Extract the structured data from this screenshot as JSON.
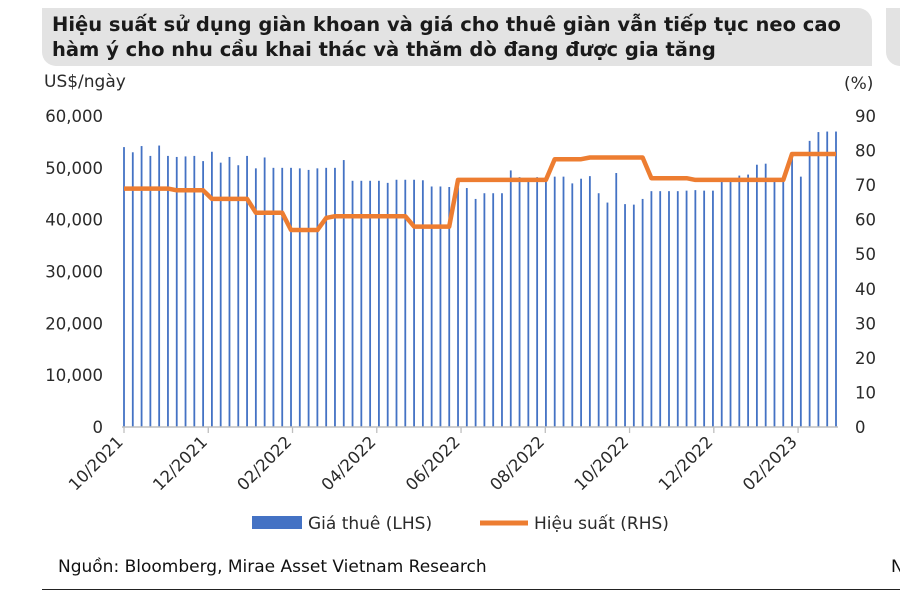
{
  "header": {
    "line1": "Hiệu suất sử dụng giàn khoan và giá cho thuê giàn vẫn tiếp tục neo cao",
    "line2": "hàm ý cho nhu cầu khai thác và thăm dò đang được gia tăng"
  },
  "source": "Nguồn: Bloomberg, Mirae Asset Vietnam Research",
  "source_peek": "N",
  "colors": {
    "bar": "#4472c4",
    "line": "#ed7d31",
    "title_bg": "#e3e3e3"
  },
  "chart_data": {
    "type": "bar+line",
    "title": "Hiệu suất sử dụng giàn khoan và giá cho thuê giàn vẫn tiếp tục neo cao hàm ý cho nhu cầu khai thác và thăm dò đang được gia tăng",
    "y_left_unit": "US$/ngày",
    "y_right_unit": "(%)",
    "y_left_ticks": [
      "0",
      "10,000",
      "20,000",
      "30,000",
      "40,000",
      "50,000",
      "60,000"
    ],
    "y_right_ticks": [
      "0",
      "10",
      "20",
      "30",
      "40",
      "50",
      "60",
      "70",
      "80",
      "90"
    ],
    "ylim_left": [
      0,
      60000
    ],
    "ylim_right": [
      0,
      90
    ],
    "x_ticks": [
      "10/2021",
      "12/2021",
      "02/2022",
      "04/2022",
      "06/2022",
      "08/2022",
      "10/2022",
      "12/2022",
      "02/2023"
    ],
    "weeks_start": "10/2021",
    "bar_values": [
      54000,
      53000,
      54200,
      52300,
      54300,
      52300,
      52100,
      52200,
      52300,
      51300,
      53100,
      51000,
      52100,
      50500,
      52300,
      49900,
      52000,
      50000,
      50000,
      50000,
      49900,
      49600,
      49900,
      50000,
      50000,
      51500,
      47500,
      47500,
      47500,
      47500,
      47100,
      47700,
      47700,
      47700,
      47600,
      46400,
      46400,
      46300,
      46200,
      46100,
      44000,
      45100,
      45100,
      45100,
      49500,
      48200,
      48000,
      48200,
      48300,
      48300,
      48300,
      47000,
      47900,
      48400,
      45100,
      43300,
      49000,
      43000,
      42900,
      44000,
      45500,
      45500,
      45500,
      45500,
      45600,
      45700,
      45600,
      45600,
      47700,
      47900,
      48500,
      48700,
      50600,
      50800,
      48000,
      48100,
      52100,
      48300,
      55200,
      56900,
      57000,
      57000
    ],
    "series": [
      {
        "name": "Giá thuê (LHS)",
        "axis": "left",
        "type": "bar",
        "values": [
          54000,
          53000,
          54200,
          52300,
          54300,
          52300,
          52100,
          52200,
          52300,
          51300,
          53100,
          51000,
          52100,
          50500,
          52300,
          49900,
          52000,
          50000,
          50000,
          50000,
          49900,
          49600,
          49900,
          50000,
          50000,
          51500,
          47500,
          47500,
          47500,
          47500,
          47100,
          47700,
          47700,
          47700,
          47600,
          46400,
          46400,
          46300,
          46200,
          46100,
          44000,
          45100,
          45100,
          45100,
          49500,
          48200,
          48000,
          48200,
          48300,
          48300,
          48300,
          47000,
          47900,
          48400,
          45100,
          43300,
          49000,
          43000,
          42900,
          44000,
          45500,
          45500,
          45500,
          45500,
          45600,
          45700,
          45600,
          45600,
          47700,
          47900,
          48500,
          48700,
          50600,
          50800,
          48000,
          48100,
          52100,
          48300,
          55200,
          56900,
          57000,
          57000
        ]
      },
      {
        "name": "Hiệu suất (RHS)",
        "axis": "right",
        "type": "line",
        "values": [
          69,
          69,
          69,
          69,
          69,
          69,
          68.5,
          68.5,
          68.5,
          68.5,
          66,
          66,
          66,
          66,
          66,
          62,
          62,
          62,
          62,
          57,
          57,
          57,
          57,
          60.5,
          61,
          61,
          61,
          61,
          61,
          61,
          61,
          61,
          61,
          58,
          58,
          58,
          58,
          58,
          71.5,
          71.5,
          71.5,
          71.5,
          71.5,
          71.5,
          71.5,
          71.5,
          71.5,
          71.5,
          71.5,
          77.5,
          77.5,
          77.5,
          77.5,
          78,
          78,
          78,
          78,
          78,
          78,
          78,
          72,
          72,
          72,
          72,
          72,
          71.5,
          71.5,
          71.5,
          71.5,
          71.5,
          71.5,
          71.5,
          71.5,
          71.5,
          71.5,
          71.5,
          79,
          79,
          79,
          79,
          79,
          79
        ]
      }
    ],
    "legend": {
      "position": "bottom",
      "items": [
        "Giá thuê (LHS)",
        "Hiệu suất (RHS)"
      ]
    }
  }
}
